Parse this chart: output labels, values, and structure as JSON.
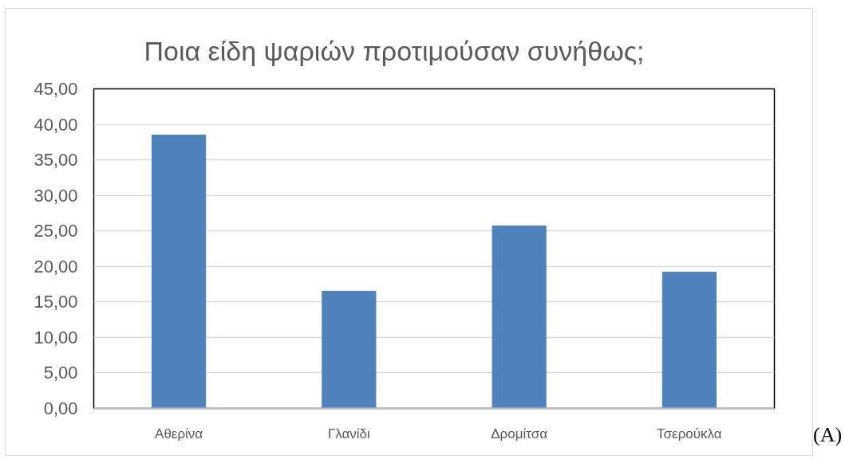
{
  "chart_data": {
    "type": "bar",
    "title": "Ποια είδη ψαριών προτιμούσαν συνήθως;",
    "categories": [
      "Αθερίνα",
      "Γλανίδι",
      "Δρομίτσα",
      "Τσερούκλα"
    ],
    "values": [
      38.5,
      16.5,
      25.7,
      19.2
    ],
    "color": "#4f81bd",
    "ylim": [
      0,
      45
    ],
    "yticks": [
      {
        "value": 0,
        "label": "0,00"
      },
      {
        "value": 5,
        "label": "5,00"
      },
      {
        "value": 10,
        "label": "10,00"
      },
      {
        "value": 15,
        "label": "15,00"
      },
      {
        "value": 20,
        "label": "20,00"
      },
      {
        "value": 25,
        "label": "25,00"
      },
      {
        "value": 30,
        "label": "30,00"
      },
      {
        "value": 35,
        "label": "35,00"
      },
      {
        "value": 40,
        "label": "40,00"
      },
      {
        "value": 45,
        "label": "45,00"
      }
    ],
    "grid": "y",
    "annotations": [
      "(A)"
    ]
  }
}
